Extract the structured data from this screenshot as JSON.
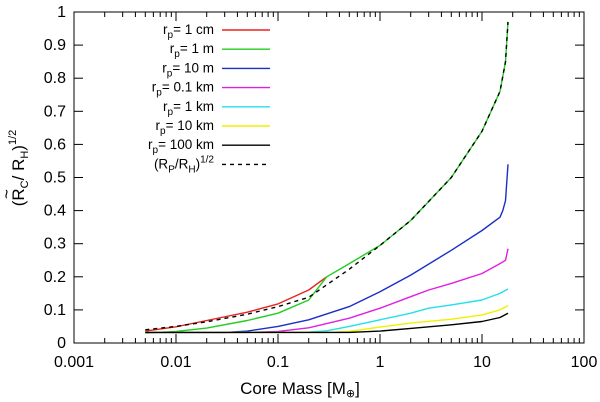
{
  "chart_data": {
    "type": "line",
    "xscale": "log",
    "xlim": [
      0.001,
      100
    ],
    "ylim": [
      0,
      1
    ],
    "x_ticks": [
      0.001,
      0.01,
      0.1,
      1,
      10,
      100
    ],
    "x_tick_labels": [
      "0.001",
      "0.01",
      "0.1",
      "1",
      "10",
      "100"
    ],
    "y_ticks": [
      0,
      0.1,
      0.2,
      0.3,
      0.4,
      0.5,
      0.6,
      0.7,
      0.8,
      0.9,
      1
    ],
    "y_tick_labels": [
      "0",
      "0.1",
      "0.2",
      "0.3",
      "0.4",
      "0.5",
      "0.6",
      "0.7",
      "0.8",
      "0.9",
      "1"
    ],
    "xlabel": {
      "text": "Core Mass [M",
      "symbol": "⊕",
      "close": "]"
    },
    "ylabel": {
      "open": "(",
      "tilde": "~",
      "r": "R",
      "c_sub": "C",
      "slash": "/ R",
      "h_sub": "H",
      "close": ")",
      "exponent": "1/2"
    },
    "legend": {
      "position": "top-left"
    },
    "series": [
      {
        "name": "r_p= 1 cm",
        "label_main": "r",
        "label_sub": "p",
        "label_rest": "= 1 cm",
        "color": "#e8241e",
        "dash": false,
        "x": [
          0.005,
          0.01,
          0.02,
          0.05,
          0.1,
          0.2,
          0.3
        ],
        "y": [
          0.036,
          0.049,
          0.068,
          0.093,
          0.118,
          0.16,
          0.2
        ]
      },
      {
        "name": "r_p= 1 m",
        "label_main": "r",
        "label_sub": "p",
        "label_rest": "= 1 m",
        "color": "#22cc22",
        "dash": false,
        "x": [
          0.005,
          0.01,
          0.02,
          0.05,
          0.1,
          0.2,
          0.3,
          0.5,
          1,
          2,
          5,
          10,
          15,
          17,
          18
        ],
        "y": [
          0.03,
          0.035,
          0.045,
          0.068,
          0.09,
          0.13,
          0.2,
          0.24,
          0.295,
          0.37,
          0.5,
          0.64,
          0.76,
          0.85,
          0.97
        ]
      },
      {
        "name": "r_p= 10 m",
        "label_main": "r",
        "label_sub": "p",
        "label_rest": "= 10 m",
        "color": "#1a2ec8",
        "dash": false,
        "x": [
          0.005,
          0.01,
          0.03,
          0.05,
          0.1,
          0.2,
          0.5,
          1,
          2,
          5,
          10,
          15,
          16,
          17,
          18
        ],
        "y": [
          0.032,
          0.032,
          0.032,
          0.036,
          0.05,
          0.07,
          0.11,
          0.155,
          0.205,
          0.28,
          0.34,
          0.38,
          0.4,
          0.43,
          0.54
        ]
      },
      {
        "name": "r_p= 0.1 km",
        "label_main": "r",
        "label_sub": "p",
        "label_rest": "= 0.1 km",
        "color": "#e020e0",
        "dash": false,
        "x": [
          0.005,
          0.05,
          0.1,
          0.2,
          0.5,
          1,
          2,
          3,
          5,
          10,
          15,
          17,
          18
        ],
        "y": [
          0.032,
          0.032,
          0.035,
          0.046,
          0.075,
          0.105,
          0.14,
          0.16,
          0.18,
          0.21,
          0.24,
          0.25,
          0.285
        ]
      },
      {
        "name": "r_p= 1 km",
        "label_main": "r",
        "label_sub": "p",
        "label_rest": "= 1 km",
        "color": "#22e0e8",
        "dash": false,
        "x": [
          0.005,
          0.2,
          0.3,
          0.5,
          1,
          2,
          3,
          5,
          10,
          15,
          18
        ],
        "y": [
          0.032,
          0.033,
          0.037,
          0.05,
          0.07,
          0.09,
          0.105,
          0.115,
          0.13,
          0.15,
          0.163
        ]
      },
      {
        "name": "r_p= 10 km",
        "label_main": "r",
        "label_sub": "p",
        "label_rest": "= 10 km",
        "color": "#f0f000",
        "dash": false,
        "x": [
          0.005,
          0.3,
          0.5,
          1,
          2,
          5,
          10,
          15,
          18
        ],
        "y": [
          0.032,
          0.032,
          0.035,
          0.048,
          0.06,
          0.072,
          0.085,
          0.1,
          0.113
        ]
      },
      {
        "name": "r_p= 100 km",
        "label_main": "r",
        "label_sub": "p",
        "label_rest": "= 100 km",
        "color": "#000000",
        "dash": false,
        "x": [
          0.005,
          0.5,
          1,
          2,
          5,
          10,
          15,
          18
        ],
        "y": [
          0.032,
          0.032,
          0.036,
          0.044,
          0.055,
          0.065,
          0.077,
          0.09
        ]
      },
      {
        "name": "(R_P/R_H)^1/2",
        "label_main": "(R",
        "label_sub": "P",
        "label_rest": "/R",
        "label_sub2": "H",
        "label_close": ")",
        "label_sup": "1/2",
        "color": "#000000",
        "dash": true,
        "x": [
          0.005,
          0.01,
          0.02,
          0.05,
          0.1,
          0.2,
          0.5,
          1,
          2,
          5,
          10,
          15,
          17,
          18
        ],
        "y": [
          0.04,
          0.05,
          0.064,
          0.087,
          0.11,
          0.138,
          0.223,
          0.295,
          0.37,
          0.5,
          0.64,
          0.76,
          0.85,
          0.97
        ]
      }
    ]
  }
}
